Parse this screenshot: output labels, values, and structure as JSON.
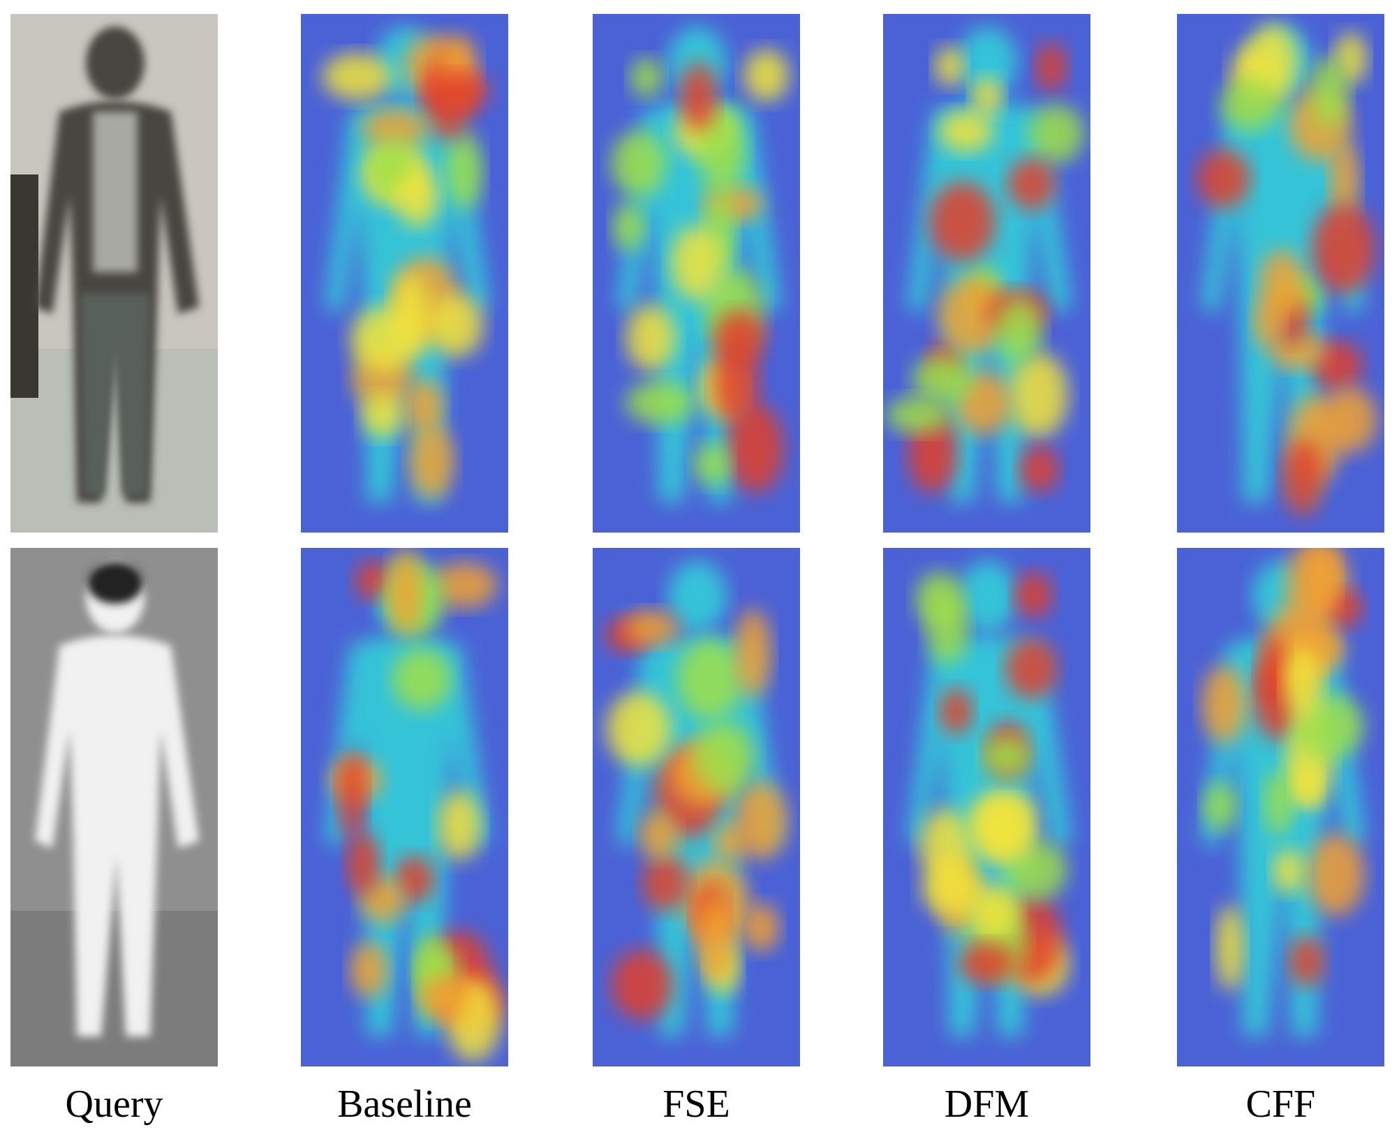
{
  "columns": [
    "Query",
    "Baseline",
    "FSE",
    "DFM",
    "CFF"
  ]
}
